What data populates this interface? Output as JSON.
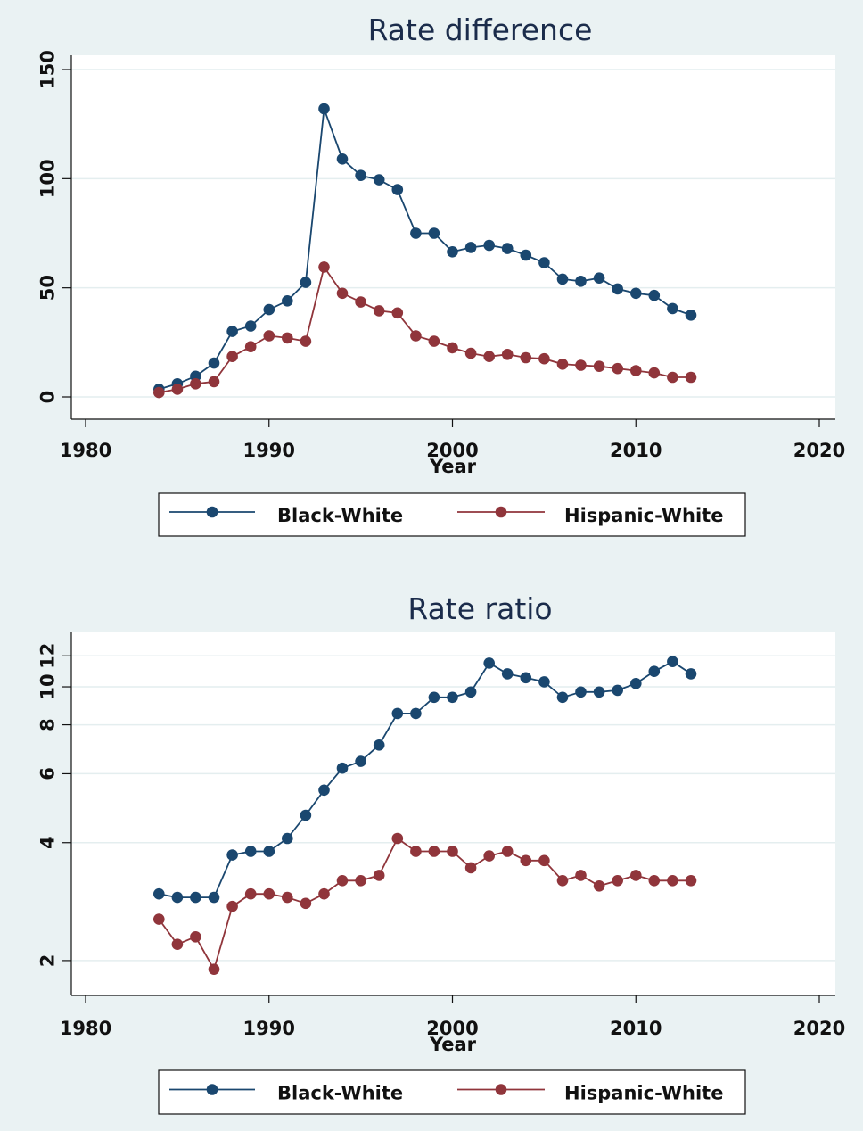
{
  "colors": {
    "background": "#eaf2f3",
    "plot_area": "#ffffff",
    "grid": "#e4eeef",
    "black_white": "#1a476f",
    "hispanic_white": "#90353b"
  },
  "chart_data": [
    {
      "type": "line",
      "title": "Rate difference",
      "xlabel": "Year",
      "ylabel": "",
      "xlim": [
        1980,
        2020
      ],
      "ylim": [
        0,
        150
      ],
      "xticks": [
        1980,
        1990,
        2000,
        2010,
        2020
      ],
      "yticks": [
        0,
        50,
        100,
        150
      ],
      "grid": true,
      "legend": "bottom",
      "x": [
        1984,
        1985,
        1986,
        1987,
        1988,
        1989,
        1990,
        1991,
        1992,
        1993,
        1994,
        1995,
        1996,
        1997,
        1998,
        1999,
        2000,
        2001,
        2002,
        2003,
        2004,
        2005,
        2006,
        2007,
        2008,
        2009,
        2010,
        2011,
        2012,
        2013
      ],
      "series": [
        {
          "name": "Black-White",
          "values": [
            3.5,
            6,
            9.5,
            15.5,
            30,
            32.5,
            40,
            44,
            52.5,
            132,
            109,
            101.5,
            99.5,
            95,
            75,
            75,
            66.5,
            68.5,
            69.5,
            68,
            65,
            61.5,
            54,
            53,
            54.5,
            49.5,
            47.5,
            46.5,
            40.5,
            37.5
          ]
        },
        {
          "name": "Hispanic-White",
          "values": [
            2,
            3.5,
            6,
            7,
            18.5,
            23,
            28,
            27,
            25.5,
            59.5,
            47.5,
            43.5,
            39.5,
            38.5,
            28,
            25.5,
            22.5,
            20,
            18.5,
            19.5,
            18,
            17.5,
            15,
            14.5,
            14,
            13,
            12,
            11,
            9,
            9
          ]
        }
      ]
    },
    {
      "type": "line",
      "title": "Rate ratio",
      "xlabel": "Year",
      "ylabel": "",
      "xlim": [
        1980,
        2020
      ],
      "ylim": [
        1.8,
        13
      ],
      "yscale": "log",
      "xticks": [
        1980,
        1990,
        2000,
        2010,
        2020
      ],
      "yticks": [
        2,
        4,
        6,
        8,
        10,
        12
      ],
      "grid": true,
      "legend": "bottom",
      "x": [
        1984,
        1985,
        1986,
        1987,
        1988,
        1989,
        1990,
        1991,
        1992,
        1993,
        1994,
        1995,
        1996,
        1997,
        1998,
        1999,
        2000,
        2001,
        2002,
        2003,
        2004,
        2005,
        2006,
        2007,
        2008,
        2009,
        2010,
        2011,
        2012,
        2013
      ],
      "series": [
        {
          "name": "Black-White",
          "values": [
            2.96,
            2.9,
            2.9,
            2.9,
            3.72,
            3.8,
            3.8,
            4.1,
            4.7,
            5.45,
            6.2,
            6.45,
            7.1,
            8.55,
            8.55,
            9.4,
            9.4,
            9.7,
            11.5,
            10.8,
            10.55,
            10.3,
            9.4,
            9.7,
            9.7,
            9.8,
            10.2,
            10.95,
            11.6,
            10.8
          ]
        },
        {
          "name": "Hispanic-White",
          "values": [
            2.55,
            2.2,
            2.3,
            1.9,
            2.75,
            2.96,
            2.96,
            2.9,
            2.8,
            2.96,
            3.2,
            3.2,
            3.3,
            4.1,
            3.8,
            3.8,
            3.8,
            3.45,
            3.7,
            3.8,
            3.6,
            3.6,
            3.2,
            3.3,
            3.1,
            3.2,
            3.3,
            3.2,
            3.2,
            3.2
          ]
        }
      ]
    }
  ]
}
